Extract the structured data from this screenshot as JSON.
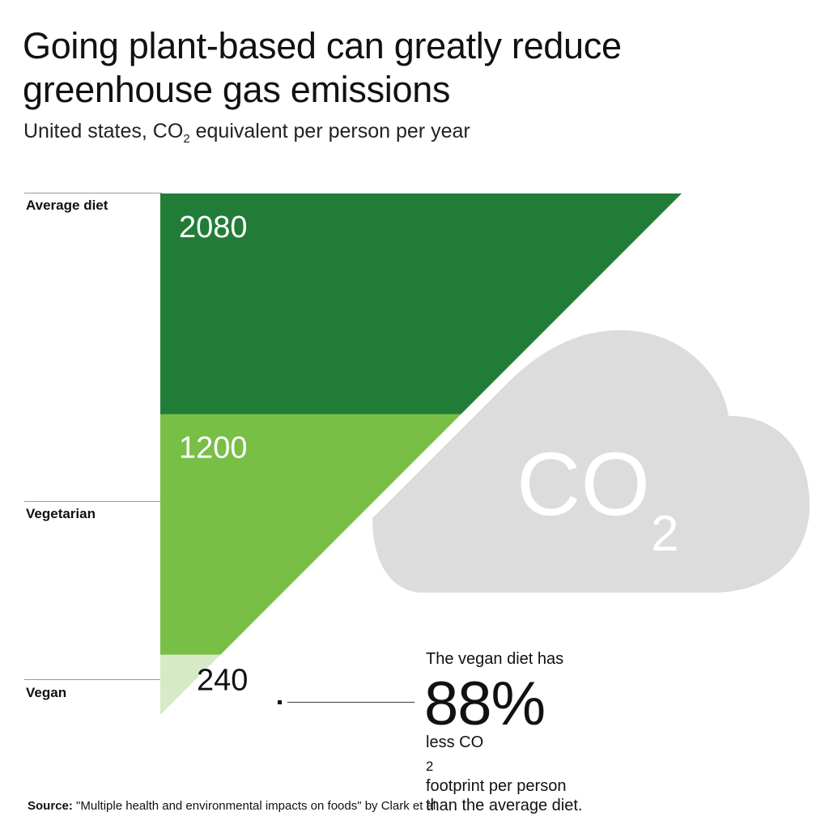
{
  "title_line1": "Going plant-based can greatly reduce",
  "title_line2": "greenhouse gas emissions",
  "subtitle": {
    "before": "United states, CO",
    "sub": "2",
    "after": " equivalent per person per year"
  },
  "cloud": {
    "text": "CO",
    "sub": "2"
  },
  "note": {
    "intro": "The vegan diet has",
    "big": "88%",
    "line1_before": "less CO",
    "line1_sub": "2",
    "line1_after": " footprint per person",
    "line2": "than the average diet."
  },
  "source": {
    "label": "Source:",
    "text": " \"Multiple health and environmental impacts on foods\" by Clark et al."
  },
  "chart_data": {
    "type": "area",
    "categories": [
      "Average diet",
      "Vegetarian",
      "Vegan"
    ],
    "values": [
      2080,
      1200,
      240
    ],
    "value_labels": [
      "2080",
      "1200",
      "240"
    ],
    "ylim": [
      0,
      2080
    ],
    "colors": [
      "#217c37",
      "#78bf46",
      "#d6eac6"
    ],
    "cloud_color": "#dcdcdc"
  }
}
